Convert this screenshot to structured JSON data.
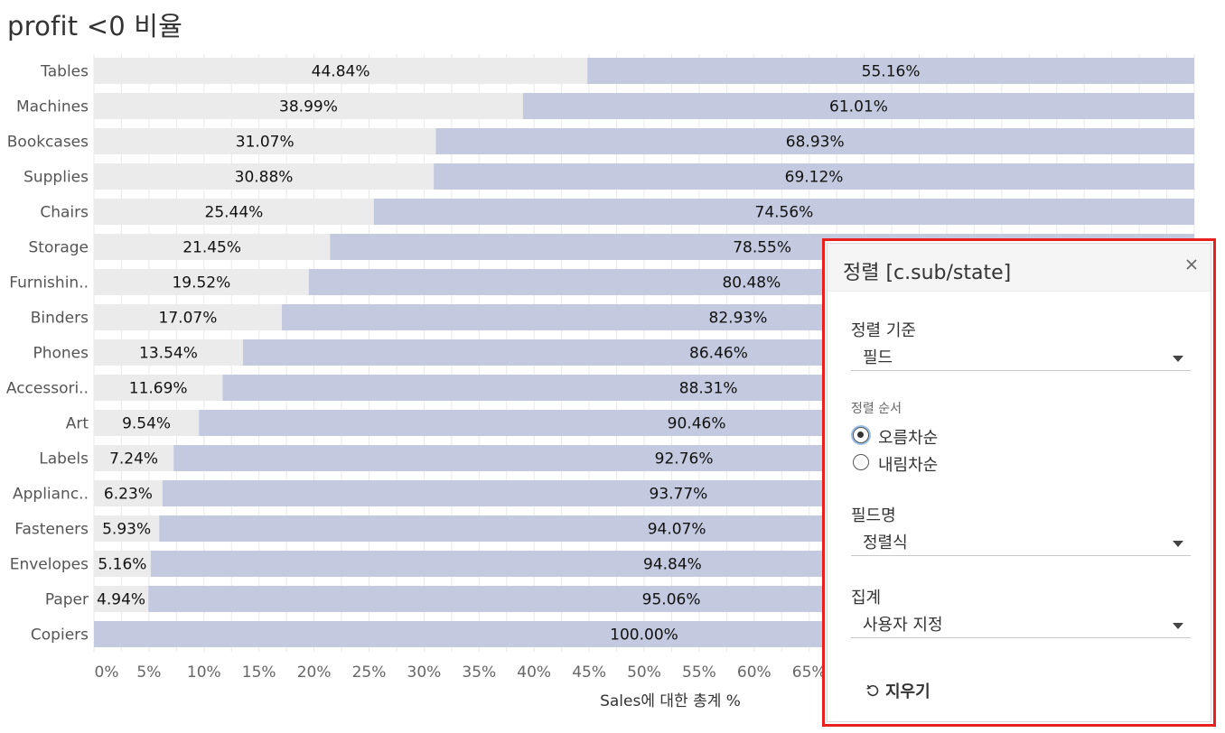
{
  "title": "profit <0 비율",
  "colors": {
    "negative_share": "#ebebeb",
    "rest_share": "#c3cadf",
    "grid": "#e9e9e9",
    "highlight": "#e8201e"
  },
  "chart_data": {
    "type": "bar",
    "orientation": "horizontal",
    "stacked": true,
    "categories": [
      "Tables",
      "Machines",
      "Bookcases",
      "Supplies",
      "Chairs",
      "Storage",
      "Furnishin..",
      "Binders",
      "Phones",
      "Accessori..",
      "Art",
      "Labels",
      "Applianc..",
      "Fasteners",
      "Envelopes",
      "Paper",
      "Copiers"
    ],
    "series": [
      {
        "values": [
          44.84,
          38.99,
          31.07,
          30.88,
          25.44,
          21.45,
          19.52,
          17.07,
          13.54,
          11.69,
          9.54,
          7.24,
          6.23,
          5.93,
          5.16,
          4.94,
          0
        ],
        "labels": [
          "44.84%",
          "38.99%",
          "31.07%",
          "30.88%",
          "25.44%",
          "21.45%",
          "19.52%",
          "17.07%",
          "13.54%",
          "11.69%",
          "9.54%",
          "7.24%",
          "6.23%",
          "5.93%",
          "5.16%",
          "4.94%",
          ""
        ]
      },
      {
        "values": [
          55.16,
          61.01,
          68.93,
          69.12,
          74.56,
          78.55,
          80.48,
          82.93,
          86.46,
          88.31,
          90.46,
          92.76,
          93.77,
          94.07,
          94.84,
          95.06,
          100.0
        ],
        "labels": [
          "55.16%",
          "61.01%",
          "68.93%",
          "69.12%",
          "74.56%",
          "78.55%",
          "80.48%",
          "82.93%",
          "86.46%",
          "88.31%",
          "90.46%",
          "92.76%",
          "93.77%",
          "94.07%",
          "94.84%",
          "95.06%",
          "100.00%"
        ]
      }
    ],
    "xticks": [
      "0%",
      "5%",
      "10%",
      "15%",
      "20%",
      "25%",
      "30%",
      "35%",
      "40%",
      "45%",
      "50%",
      "55%",
      "60%",
      "65%"
    ],
    "xlabel": "Sales에 대한 총계 %",
    "xlim": [
      0,
      100
    ],
    "grid": true
  },
  "sort_panel": {
    "title": "정렬 [c.sub/state]",
    "sort_by_label": "정렬 기준",
    "sort_by_value": "필드",
    "sort_order_label": "정렬 순서",
    "ascending_label": "오름차순",
    "descending_label": "내림차순",
    "ascending_checked": true,
    "field_name_label": "필드명",
    "field_name_value": "정렬식",
    "aggregation_label": "집계",
    "aggregation_value": "사용자 지정",
    "clear_label": "지우기"
  }
}
